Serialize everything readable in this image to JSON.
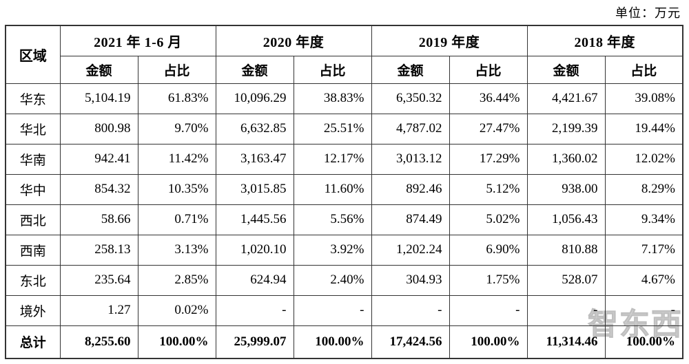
{
  "unit_label": "单位：万元",
  "watermark": {
    "text": "智东西",
    "color": "#d2d2d2"
  },
  "table": {
    "region_header": "区域",
    "col_groups": [
      {
        "label": "2021 年 1-6 月"
      },
      {
        "label": "2020 年度"
      },
      {
        "label": "2019 年度"
      },
      {
        "label": "2018 年度"
      }
    ],
    "sub_headers": [
      "金额",
      "占比"
    ],
    "rows": [
      {
        "region": "华东",
        "bold": false,
        "values": [
          "5,104.19",
          "61.83%",
          "10,096.29",
          "38.83%",
          "6,350.32",
          "36.44%",
          "4,421.67",
          "39.08%"
        ]
      },
      {
        "region": "华北",
        "bold": false,
        "values": [
          "800.98",
          "9.70%",
          "6,632.85",
          "25.51%",
          "4,787.02",
          "27.47%",
          "2,199.39",
          "19.44%"
        ]
      },
      {
        "region": "华南",
        "bold": false,
        "values": [
          "942.41",
          "11.42%",
          "3,163.47",
          "12.17%",
          "3,013.12",
          "17.29%",
          "1,360.02",
          "12.02%"
        ]
      },
      {
        "region": "华中",
        "bold": false,
        "values": [
          "854.32",
          "10.35%",
          "3,015.85",
          "11.60%",
          "892.46",
          "5.12%",
          "938.00",
          "8.29%"
        ]
      },
      {
        "region": "西北",
        "bold": false,
        "values": [
          "58.66",
          "0.71%",
          "1,445.56",
          "5.56%",
          "874.49",
          "5.02%",
          "1,056.43",
          "9.34%"
        ]
      },
      {
        "region": "西南",
        "bold": false,
        "values": [
          "258.13",
          "3.13%",
          "1,020.10",
          "3.92%",
          "1,202.24",
          "6.90%",
          "810.88",
          "7.17%"
        ]
      },
      {
        "region": "东北",
        "bold": false,
        "values": [
          "235.64",
          "2.85%",
          "624.94",
          "2.40%",
          "304.93",
          "1.75%",
          "528.07",
          "4.67%"
        ]
      },
      {
        "region": "境外",
        "bold": false,
        "values": [
          "1.27",
          "0.02%",
          "-",
          "-",
          "-",
          "-",
          "-",
          "-"
        ]
      },
      {
        "region": "总计",
        "bold": true,
        "values": [
          "8,255.60",
          "100.00%",
          "25,999.07",
          "100.00%",
          "17,424.56",
          "100.00%",
          "11,314.46",
          "100.00%"
        ]
      }
    ]
  }
}
